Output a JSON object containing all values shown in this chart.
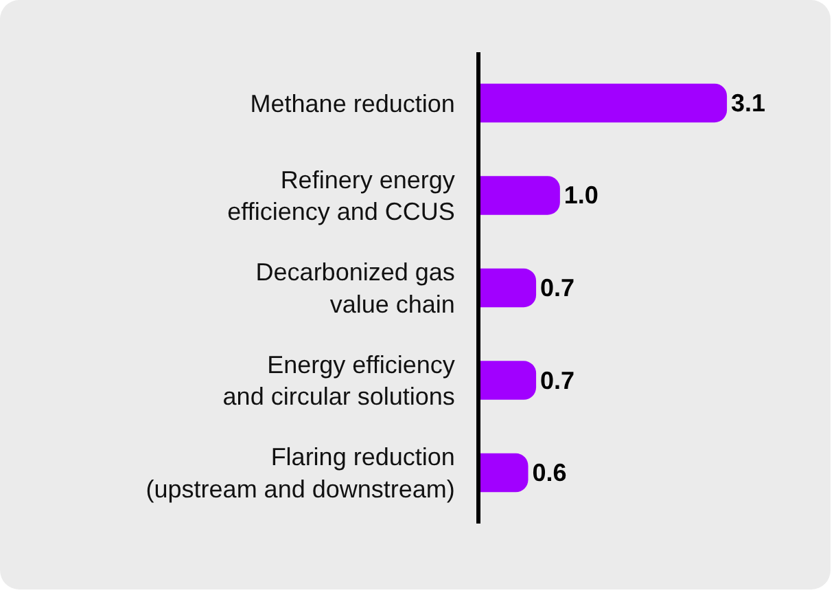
{
  "chart_data": {
    "type": "bar",
    "orientation": "horizontal",
    "categories": [
      "Methane reduction",
      "Refinery energy\nefficiency and CCUS",
      "Decarbonized gas\nvalue chain",
      "Energy efficiency\nand circular solutions",
      "Flaring reduction\n(upstream and downstream)"
    ],
    "values": [
      3.1,
      1.0,
      0.7,
      0.7,
      0.6
    ],
    "value_labels": [
      "3.1",
      "1.0",
      "0.7",
      "0.7",
      "0.6"
    ],
    "color": "#a100ff",
    "tick_labels": "y",
    "legend": false
  }
}
